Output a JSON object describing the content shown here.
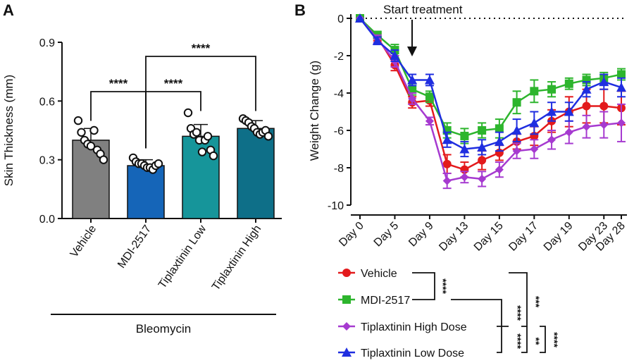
{
  "panel_a": {
    "letter": "A",
    "chart_data": {
      "type": "bar",
      "ylabel": "Skin Thickness (mm)",
      "ylim": [
        0,
        0.9
      ],
      "yticks": [
        "0.0",
        "0.3",
        "0.6",
        "0.9"
      ],
      "categories": [
        "Vehicle",
        "MDI-2517",
        "Tiplaxtinin Low",
        "Tiplaxtinin High"
      ],
      "values": [
        0.4,
        0.27,
        0.42,
        0.46
      ],
      "errors": [
        0.06,
        0.03,
        0.06,
        0.04
      ],
      "colors": [
        "#808080",
        "#1565b8",
        "#16959a",
        "#0e6f88"
      ],
      "points": [
        [
          0.5,
          0.44,
          0.4,
          0.38,
          0.37,
          0.45,
          0.35,
          0.33,
          0.3
        ],
        [
          0.31,
          0.29,
          0.28,
          0.28,
          0.27,
          0.26,
          0.26,
          0.25,
          0.27,
          0.28
        ],
        [
          0.54,
          0.46,
          0.43,
          0.44,
          0.4,
          0.34,
          0.4,
          0.42,
          0.35,
          0.32
        ],
        [
          0.51,
          0.5,
          0.49,
          0.47,
          0.46,
          0.44,
          0.43,
          0.44,
          0.45,
          0.42
        ]
      ],
      "group_label": "Bleomycin",
      "significance": [
        {
          "pair": [
            "Vehicle",
            "MDI-2517"
          ],
          "label": "****"
        },
        {
          "pair": [
            "MDI-2517",
            "Tiplaxtinin Low"
          ],
          "label": "****"
        },
        {
          "pair": [
            "MDI-2517",
            "Tiplaxtinin High"
          ],
          "label": "****"
        }
      ]
    }
  },
  "panel_b": {
    "letter": "B",
    "annotation": "Start treatment",
    "chart_data": {
      "type": "line",
      "ylabel": "Weight Change (g)",
      "ylim": [
        -10,
        0
      ],
      "yticks": [
        "0",
        "-2",
        "-4",
        "-6",
        "-8",
        "-10"
      ],
      "xticks": [
        "Day 0",
        "Day 5",
        "Day 9",
        "Day 13",
        "Day 15",
        "Day 17",
        "Day 19",
        "Day 23",
        "Day 28"
      ],
      "reference_line": 0,
      "series": [
        {
          "name": "Vehicle",
          "color": "#e31a1c",
          "marker": "circle",
          "values": [
            0,
            -1.0,
            -2.5,
            -4.5,
            -4.4,
            -7.8,
            -8.1,
            -7.6,
            -7.2,
            -6.6,
            -6.3,
            -5.5,
            -5.0,
            -4.7,
            -4.7,
            -4.8
          ],
          "errors": [
            0,
            0.2,
            0.3,
            0.3,
            0.3,
            0.5,
            0.4,
            0.5,
            0.4,
            0.4,
            0.5,
            0.6,
            0.8,
            0.9,
            0.9,
            0.9
          ]
        },
        {
          "name": "MDI-2517",
          "color": "#2db52d",
          "marker": "square",
          "values": [
            0,
            -0.9,
            -1.7,
            -3.8,
            -4.2,
            -6.0,
            -6.3,
            -6.0,
            -5.9,
            -4.5,
            -3.9,
            -3.8,
            -3.5,
            -3.3,
            -3.2,
            -3.0
          ],
          "errors": [
            0,
            0.2,
            0.3,
            0.3,
            0.3,
            0.4,
            0.4,
            0.4,
            0.5,
            0.6,
            0.6,
            0.4,
            0.3,
            0.3,
            0.3,
            0.3
          ]
        },
        {
          "name": "Tiplaxtinin High Dose",
          "color": "#a63ad0",
          "marker": "diamond",
          "values": [
            0,
            -1.1,
            -2.3,
            -4.3,
            -5.5,
            -8.7,
            -8.5,
            -8.6,
            -8.1,
            -7.1,
            -7.0,
            -6.5,
            -6.1,
            -5.8,
            -5.7,
            -5.6
          ],
          "errors": [
            0,
            0.2,
            0.3,
            0.3,
            0.2,
            0.4,
            0.3,
            0.4,
            0.4,
            0.4,
            0.5,
            0.5,
            0.6,
            0.6,
            0.7,
            1.0
          ]
        },
        {
          "name": "Tiplaxtinin Low Dose",
          "color": "#1f2ee0",
          "marker": "triangle",
          "values": [
            0,
            -1.2,
            -2.0,
            -3.3,
            -3.3,
            -6.5,
            -7.0,
            -6.9,
            -6.6,
            -6.0,
            -5.6,
            -5.0,
            -5.0,
            -3.8,
            -3.4,
            -3.7
          ],
          "errors": [
            0,
            0.2,
            0.3,
            0.3,
            0.3,
            0.4,
            0.4,
            0.4,
            0.5,
            0.6,
            0.6,
            0.5,
            0.5,
            0.4,
            0.4,
            0.5
          ]
        }
      ],
      "legend": [
        "Vehicle",
        "MDI-2517",
        "Tiplaxtinin High Dose",
        "Tiplaxtinin Low Dose"
      ],
      "significance": [
        {
          "pair": [
            "Vehicle",
            "MDI-2517"
          ],
          "label": "****"
        },
        {
          "pair": [
            "MDI-2517",
            "Tiplaxtinin High Dose"
          ],
          "label": "****"
        },
        {
          "pair": [
            "MDI-2517",
            "Tiplaxtinin Low Dose"
          ],
          "label": "****"
        },
        {
          "pair": [
            "Vehicle",
            "Tiplaxtinin High Dose"
          ],
          "label": "***"
        },
        {
          "pair": [
            "Vehicle",
            "Tiplaxtinin Low Dose"
          ],
          "label": "**"
        },
        {
          "pair": [
            "Tiplaxtinin High Dose",
            "Tiplaxtinin Low Dose"
          ],
          "label": "****"
        }
      ]
    }
  }
}
